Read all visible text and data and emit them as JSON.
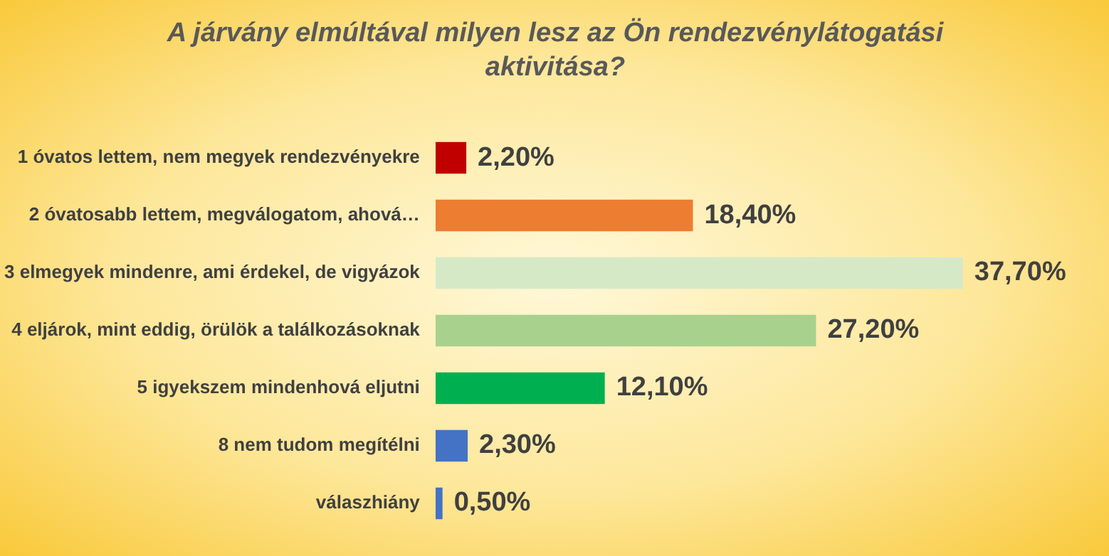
{
  "chart_data": {
    "type": "bar",
    "orientation": "horizontal",
    "title": "A járvány elmúltával milyen lesz az Ön rendezvénylátogatási aktivitása?",
    "categories": [
      "1 óvatos lettem, nem megyek rendezvényekre",
      "2 óvatosabb lettem, megválogatom, ahová…",
      "3 elmegyek mindenre, ami érdekel, de vigyázok",
      "4 eljárok, mint eddig, örülök a találkozásoknak",
      "5 igyekszem mindenhová eljutni",
      "8 nem tudom megítélni",
      "válaszhiány"
    ],
    "values": [
      2.2,
      18.4,
      37.7,
      27.2,
      12.1,
      2.3,
      0.5
    ],
    "colors": [
      "#c00000",
      "#ed7d31",
      "#d6e9c6",
      "#a9d18e",
      "#00b050",
      "#4472c4",
      "#4472c4"
    ],
    "value_labels": [
      "2,20%",
      "18,40%",
      "37,70%",
      "27,20%",
      "12,10%",
      "2,30%",
      "0,50%"
    ]
  }
}
